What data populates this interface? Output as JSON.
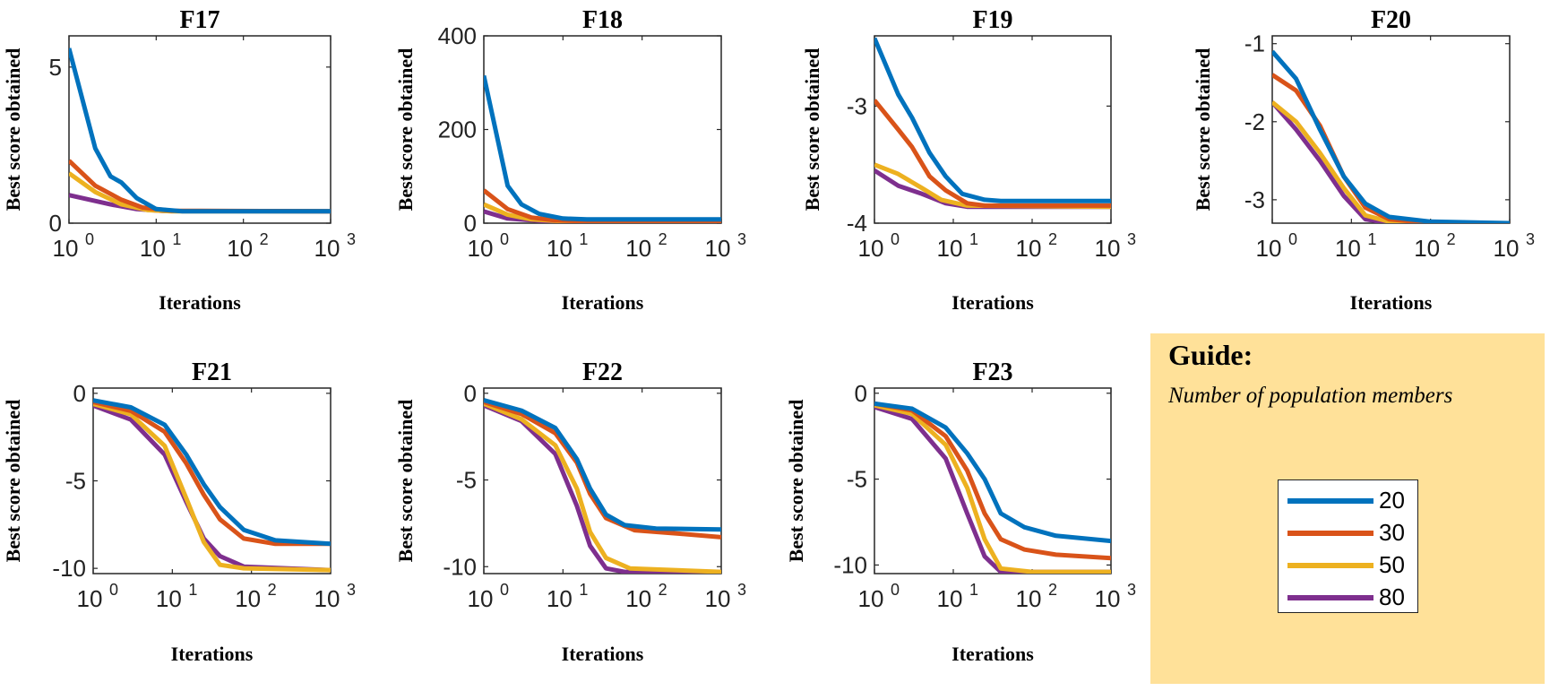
{
  "colors": {
    "s20": "#0072bd",
    "s30": "#d95319",
    "s50": "#edb120",
    "s80": "#7e2f8e"
  },
  "guide": {
    "title": "Guide:",
    "subtitle": "Number of population members"
  },
  "legend": [
    {
      "label": "20",
      "color": "#0072bd"
    },
    {
      "label": "30",
      "color": "#d95319"
    },
    {
      "label": "50",
      "color": "#edb120"
    },
    {
      "label": "80",
      "color": "#7e2f8e"
    }
  ],
  "chart_data": [
    {
      "type": "line",
      "title": "F17",
      "xlabel": "Iterations",
      "ylabel": "Best score obtained",
      "xscale": "log",
      "xlim": [
        1,
        1000
      ],
      "ylim": [
        0,
        6
      ],
      "yticks": [
        0,
        5
      ],
      "ytick_labels": [
        "0",
        "5"
      ],
      "xticks": [
        1,
        10,
        100,
        1000
      ],
      "series": [
        {
          "name": "20",
          "points": [
            [
              1,
              5.6
            ],
            [
              2,
              2.4
            ],
            [
              3,
              1.5
            ],
            [
              4,
              1.3
            ],
            [
              6,
              0.8
            ],
            [
              10,
              0.45
            ],
            [
              20,
              0.38
            ],
            [
              1000,
              0.38
            ]
          ]
        },
        {
          "name": "30",
          "points": [
            [
              1,
              2.0
            ],
            [
              2,
              1.2
            ],
            [
              4,
              0.75
            ],
            [
              7,
              0.5
            ],
            [
              15,
              0.4
            ],
            [
              1000,
              0.38
            ]
          ]
        },
        {
          "name": "50",
          "points": [
            [
              1,
              1.6
            ],
            [
              2,
              1.0
            ],
            [
              4,
              0.6
            ],
            [
              8,
              0.42
            ],
            [
              15,
              0.38
            ],
            [
              1000,
              0.38
            ]
          ]
        },
        {
          "name": "80",
          "points": [
            [
              1,
              0.9
            ],
            [
              3,
              0.6
            ],
            [
              6,
              0.45
            ],
            [
              12,
              0.39
            ],
            [
              1000,
              0.38
            ]
          ]
        }
      ]
    },
    {
      "type": "line",
      "title": "F18",
      "xlabel": "Iterations",
      "ylabel": "Best score obtained",
      "xscale": "log",
      "xlim": [
        1,
        1000
      ],
      "ylim": [
        0,
        400
      ],
      "yticks": [
        0,
        200,
        400
      ],
      "ytick_labels": [
        "0",
        "200",
        "400"
      ],
      "xticks": [
        1,
        10,
        100,
        1000
      ],
      "series": [
        {
          "name": "20",
          "points": [
            [
              1,
              315
            ],
            [
              2,
              80
            ],
            [
              3,
              40
            ],
            [
              5,
              20
            ],
            [
              10,
              10
            ],
            [
              20,
              8
            ],
            [
              1000,
              8
            ]
          ]
        },
        {
          "name": "30",
          "points": [
            [
              1,
              70
            ],
            [
              2,
              30
            ],
            [
              4,
              12
            ],
            [
              8,
              6
            ],
            [
              20,
              4
            ],
            [
              1000,
              4
            ]
          ]
        },
        {
          "name": "50",
          "points": [
            [
              1,
              40
            ],
            [
              2,
              18
            ],
            [
              4,
              8
            ],
            [
              10,
              4
            ],
            [
              1000,
              3
            ]
          ]
        },
        {
          "name": "80",
          "points": [
            [
              1,
              25
            ],
            [
              2,
              10
            ],
            [
              5,
              5
            ],
            [
              10,
              3
            ],
            [
              1000,
              3
            ]
          ]
        }
      ]
    },
    {
      "type": "line",
      "title": "F19",
      "xlabel": "Iterations",
      "ylabel": "Best score obtained",
      "xscale": "log",
      "xlim": [
        1,
        1000
      ],
      "ylim": [
        -4,
        -2.4
      ],
      "yticks": [
        -4,
        -3
      ],
      "ytick_labels": [
        "-4",
        "-3"
      ],
      "xticks": [
        1,
        10,
        100,
        1000
      ],
      "series": [
        {
          "name": "20",
          "points": [
            [
              1,
              -2.42
            ],
            [
              2,
              -2.9
            ],
            [
              3,
              -3.1
            ],
            [
              5,
              -3.4
            ],
            [
              8,
              -3.6
            ],
            [
              13,
              -3.75
            ],
            [
              25,
              -3.8
            ],
            [
              40,
              -3.81
            ],
            [
              1000,
              -3.81
            ]
          ]
        },
        {
          "name": "30",
          "points": [
            [
              1,
              -2.95
            ],
            [
              2,
              -3.2
            ],
            [
              3,
              -3.35
            ],
            [
              5,
              -3.6
            ],
            [
              8,
              -3.72
            ],
            [
              15,
              -3.83
            ],
            [
              25,
              -3.85
            ],
            [
              1000,
              -3.85
            ]
          ]
        },
        {
          "name": "50",
          "points": [
            [
              1,
              -3.5
            ],
            [
              2,
              -3.58
            ],
            [
              4,
              -3.7
            ],
            [
              7,
              -3.8
            ],
            [
              15,
              -3.85
            ],
            [
              1000,
              -3.86
            ]
          ]
        },
        {
          "name": "80",
          "points": [
            [
              1,
              -3.55
            ],
            [
              2,
              -3.68
            ],
            [
              4,
              -3.75
            ],
            [
              8,
              -3.83
            ],
            [
              15,
              -3.86
            ],
            [
              1000,
              -3.86
            ]
          ]
        }
      ]
    },
    {
      "type": "line",
      "title": "F20",
      "xlabel": "Iterations",
      "ylabel": "Best score obtained",
      "xscale": "log",
      "xlim": [
        1,
        1000
      ],
      "ylim": [
        -3.3,
        -0.9
      ],
      "yticks": [
        -3,
        -2,
        -1
      ],
      "ytick_labels": [
        "-3",
        "-2",
        "-1"
      ],
      "xticks": [
        1,
        10,
        100,
        1000
      ],
      "series": [
        {
          "name": "20",
          "points": [
            [
              1,
              -1.1
            ],
            [
              2,
              -1.45
            ],
            [
              4,
              -2.1
            ],
            [
              8,
              -2.7
            ],
            [
              15,
              -3.05
            ],
            [
              30,
              -3.22
            ],
            [
              100,
              -3.28
            ],
            [
              1000,
              -3.3
            ]
          ]
        },
        {
          "name": "30",
          "points": [
            [
              1,
              -1.4
            ],
            [
              2,
              -1.6
            ],
            [
              4,
              -2.05
            ],
            [
              8,
              -2.7
            ],
            [
              15,
              -3.1
            ],
            [
              30,
              -3.25
            ],
            [
              100,
              -3.3
            ],
            [
              1000,
              -3.3
            ]
          ]
        },
        {
          "name": "50",
          "points": [
            [
              1,
              -1.75
            ],
            [
              2,
              -2.0
            ],
            [
              4,
              -2.4
            ],
            [
              8,
              -2.85
            ],
            [
              15,
              -3.2
            ],
            [
              30,
              -3.28
            ],
            [
              1000,
              -3.32
            ]
          ]
        },
        {
          "name": "80",
          "points": [
            [
              1,
              -1.75
            ],
            [
              2,
              -2.1
            ],
            [
              4,
              -2.5
            ],
            [
              8,
              -2.95
            ],
            [
              15,
              -3.25
            ],
            [
              30,
              -3.3
            ],
            [
              1000,
              -3.32
            ]
          ]
        }
      ]
    },
    {
      "type": "line",
      "title": "F21",
      "xlabel": "Iterations",
      "ylabel": "Best score obtained",
      "xscale": "log",
      "xlim": [
        1,
        1000
      ],
      "ylim": [
        -10.3,
        0.3
      ],
      "yticks": [
        -10,
        -5,
        0
      ],
      "ytick_labels": [
        "-10",
        "-5",
        "0"
      ],
      "xticks": [
        1,
        10,
        100,
        1000
      ],
      "series": [
        {
          "name": "20",
          "points": [
            [
              1,
              -0.4
            ],
            [
              3,
              -0.8
            ],
            [
              8,
              -1.8
            ],
            [
              15,
              -3.5
            ],
            [
              25,
              -5.2
            ],
            [
              40,
              -6.5
            ],
            [
              80,
              -7.8
            ],
            [
              200,
              -8.4
            ],
            [
              1000,
              -8.6
            ]
          ]
        },
        {
          "name": "30",
          "points": [
            [
              1,
              -0.5
            ],
            [
              3,
              -1.0
            ],
            [
              8,
              -2.2
            ],
            [
              15,
              -4.0
            ],
            [
              25,
              -5.8
            ],
            [
              40,
              -7.2
            ],
            [
              80,
              -8.3
            ],
            [
              200,
              -8.6
            ],
            [
              1000,
              -8.6
            ]
          ]
        },
        {
          "name": "50",
          "points": [
            [
              1,
              -0.6
            ],
            [
              3,
              -1.2
            ],
            [
              8,
              -3.0
            ],
            [
              15,
              -6.0
            ],
            [
              25,
              -8.5
            ],
            [
              40,
              -9.8
            ],
            [
              80,
              -10.0
            ],
            [
              1000,
              -10.1
            ]
          ]
        },
        {
          "name": "80",
          "points": [
            [
              1,
              -0.7
            ],
            [
              3,
              -1.5
            ],
            [
              8,
              -3.5
            ],
            [
              15,
              -6.2
            ],
            [
              25,
              -8.3
            ],
            [
              40,
              -9.3
            ],
            [
              80,
              -9.9
            ],
            [
              1000,
              -10.1
            ]
          ]
        }
      ]
    },
    {
      "type": "line",
      "title": "F22",
      "xlabel": "Iterations",
      "ylabel": "Best score obtained",
      "xscale": "log",
      "xlim": [
        1,
        1000
      ],
      "ylim": [
        -10.4,
        0.3
      ],
      "yticks": [
        -10,
        -5,
        0
      ],
      "ytick_labels": [
        "-10",
        "-5",
        "0"
      ],
      "xticks": [
        1,
        10,
        100,
        1000
      ],
      "series": [
        {
          "name": "20",
          "points": [
            [
              1,
              -0.4
            ],
            [
              3,
              -1.0
            ],
            [
              8,
              -2.0
            ],
            [
              15,
              -3.8
            ],
            [
              22,
              -5.5
            ],
            [
              35,
              -7.0
            ],
            [
              60,
              -7.6
            ],
            [
              150,
              -7.8
            ],
            [
              1000,
              -7.85
            ]
          ]
        },
        {
          "name": "30",
          "points": [
            [
              1,
              -0.5
            ],
            [
              3,
              -1.2
            ],
            [
              8,
              -2.3
            ],
            [
              15,
              -4.0
            ],
            [
              22,
              -5.8
            ],
            [
              35,
              -7.2
            ],
            [
              80,
              -7.9
            ],
            [
              300,
              -8.1
            ],
            [
              1000,
              -8.3
            ]
          ]
        },
        {
          "name": "50",
          "points": [
            [
              1,
              -0.6
            ],
            [
              3,
              -1.5
            ],
            [
              8,
              -3.0
            ],
            [
              15,
              -5.5
            ],
            [
              22,
              -8.0
            ],
            [
              35,
              -9.5
            ],
            [
              70,
              -10.1
            ],
            [
              1000,
              -10.3
            ]
          ]
        },
        {
          "name": "80",
          "points": [
            [
              1,
              -0.7
            ],
            [
              3,
              -1.6
            ],
            [
              8,
              -3.5
            ],
            [
              15,
              -6.5
            ],
            [
              22,
              -8.8
            ],
            [
              35,
              -10.1
            ],
            [
              60,
              -10.3
            ],
            [
              1000,
              -10.3
            ]
          ]
        }
      ]
    },
    {
      "type": "line",
      "title": "F23",
      "xlabel": "Iterations",
      "ylabel": "Best score obtained",
      "xscale": "log",
      "xlim": [
        1,
        1000
      ],
      "ylim": [
        -10.5,
        0.3
      ],
      "yticks": [
        -10,
        -5,
        0
      ],
      "ytick_labels": [
        "-10",
        "-5",
        "0"
      ],
      "xticks": [
        1,
        10,
        100,
        1000
      ],
      "series": [
        {
          "name": "20",
          "points": [
            [
              1,
              -0.6
            ],
            [
              3,
              -0.9
            ],
            [
              8,
              -2.0
            ],
            [
              15,
              -3.5
            ],
            [
              25,
              -5.0
            ],
            [
              40,
              -7.0
            ],
            [
              80,
              -7.8
            ],
            [
              200,
              -8.3
            ],
            [
              1000,
              -8.6
            ]
          ]
        },
        {
          "name": "30",
          "points": [
            [
              1,
              -0.6
            ],
            [
              3,
              -1.0
            ],
            [
              8,
              -2.5
            ],
            [
              15,
              -4.5
            ],
            [
              25,
              -7.0
            ],
            [
              40,
              -8.5
            ],
            [
              80,
              -9.1
            ],
            [
              200,
              -9.4
            ],
            [
              1000,
              -9.6
            ]
          ]
        },
        {
          "name": "50",
          "points": [
            [
              1,
              -0.7
            ],
            [
              3,
              -1.2
            ],
            [
              8,
              -3.0
            ],
            [
              15,
              -5.5
            ],
            [
              25,
              -8.5
            ],
            [
              40,
              -10.2
            ],
            [
              100,
              -10.4
            ],
            [
              1000,
              -10.4
            ]
          ]
        },
        {
          "name": "80",
          "points": [
            [
              1,
              -0.8
            ],
            [
              3,
              -1.5
            ],
            [
              8,
              -3.8
            ],
            [
              15,
              -7.0
            ],
            [
              25,
              -9.5
            ],
            [
              40,
              -10.4
            ],
            [
              1000,
              -10.4
            ]
          ]
        }
      ]
    }
  ]
}
